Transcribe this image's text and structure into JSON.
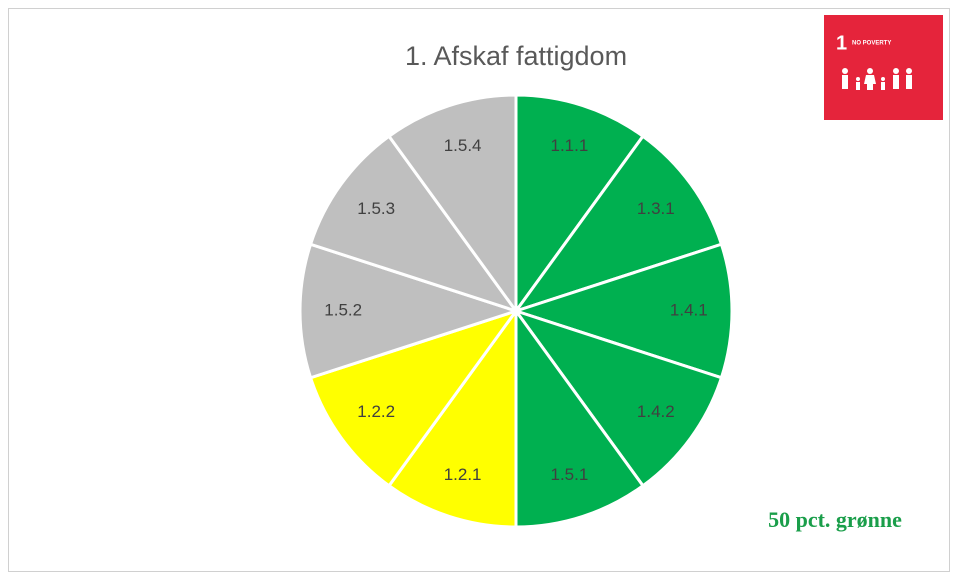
{
  "chart_data": {
    "type": "pie",
    "title": "1. Afskaf fattigdom",
    "categories": [
      "1.1.1",
      "1.3.1",
      "1.4.1",
      "1.4.2",
      "1.5.1",
      "1.2.1",
      "1.2.2",
      "1.5.2",
      "1.5.3",
      "1.5.4"
    ],
    "values": [
      10,
      10,
      10,
      10,
      10,
      10,
      10,
      10,
      10,
      10
    ],
    "colors": [
      "#00b050",
      "#00b050",
      "#00b050",
      "#00b050",
      "#00b050",
      "#ffff00",
      "#ffff00",
      "#bfbfbf",
      "#bfbfbf",
      "#bfbfbf"
    ],
    "annotation": "50 pct. grønne",
    "logo": {
      "number": "1",
      "text": "NO POVERTY"
    }
  }
}
